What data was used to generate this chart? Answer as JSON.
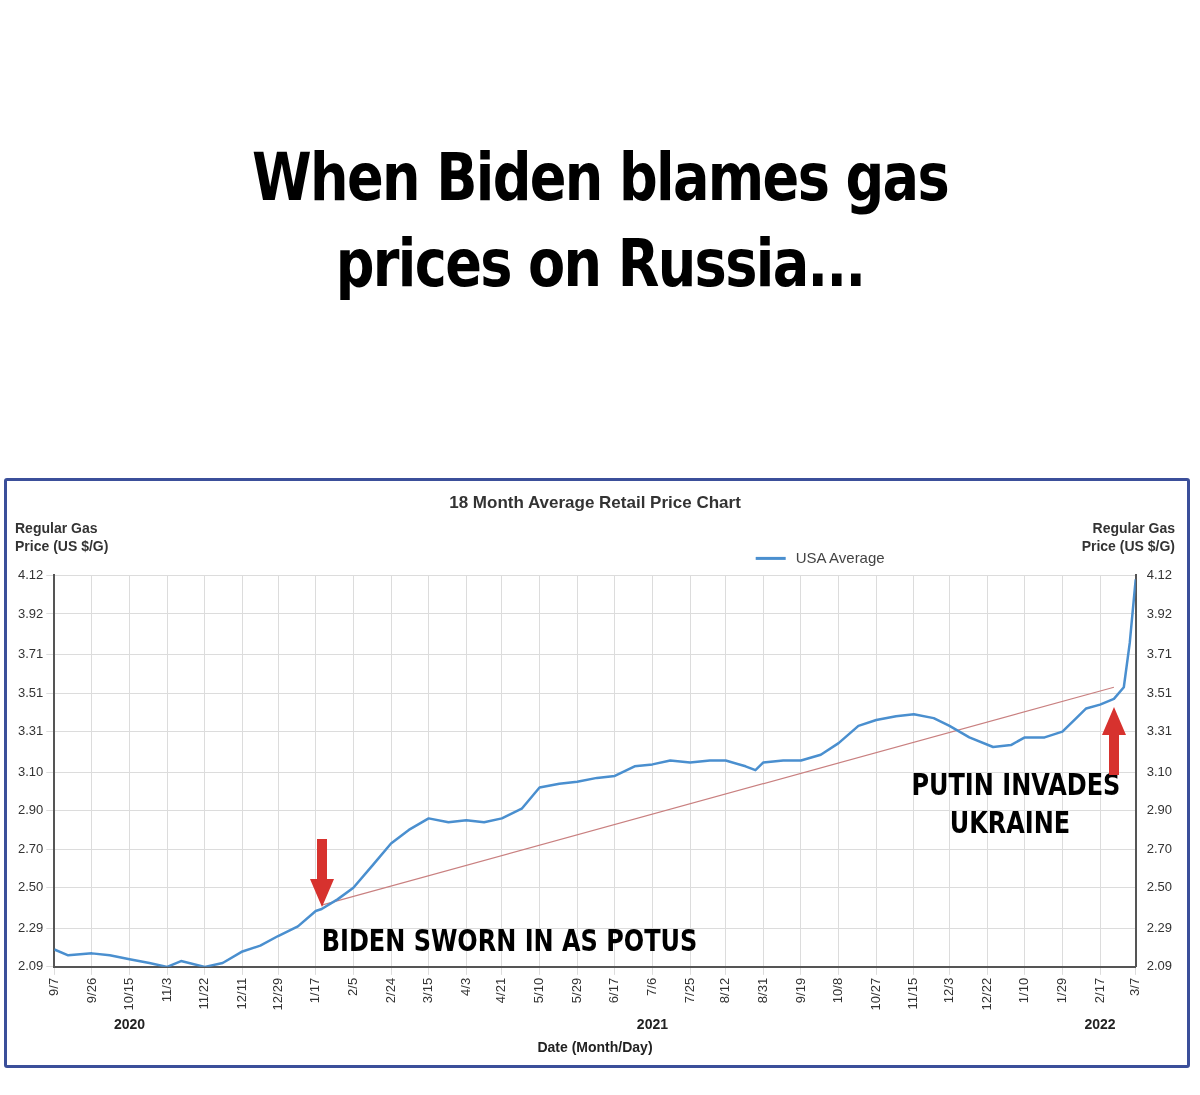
{
  "chart_data": {
    "type": "line",
    "title": "When Biden blames gas prices on Russia...",
    "subtitle": "18 Month Average Retail Price Chart",
    "xlabel": "Date (Month/Day)",
    "ylabel": "Regular Gas Price (US $/G)",
    "y2label": "Regular Gas Price (US $/G)",
    "xlim": [
      "2020-09-07",
      "2022-03-07"
    ],
    "xticks": [
      {
        "value": "2020-09-07",
        "label": "9/7"
      },
      {
        "value": "2020-09-26",
        "label": "9/26"
      },
      {
        "value": "2020-10-15",
        "label": "10/15"
      },
      {
        "value": "2020-11-03",
        "label": "11/3"
      },
      {
        "value": "2020-11-22",
        "label": "11/22"
      },
      {
        "value": "2020-12-11",
        "label": "12/11"
      },
      {
        "value": "2020-12-29",
        "label": "12/29"
      },
      {
        "value": "2021-01-17",
        "label": "1/17"
      },
      {
        "value": "2021-02-05",
        "label": "2/5"
      },
      {
        "value": "2021-02-24",
        "label": "2/24"
      },
      {
        "value": "2021-03-15",
        "label": "3/15"
      },
      {
        "value": "2021-04-03",
        "label": "4/3"
      },
      {
        "value": "2021-04-21",
        "label": "4/21"
      },
      {
        "value": "2021-05-10",
        "label": "5/10"
      },
      {
        "value": "2021-05-29",
        "label": "5/29"
      },
      {
        "value": "2021-06-17",
        "label": "6/17"
      },
      {
        "value": "2021-07-06",
        "label": "7/6"
      },
      {
        "value": "2021-07-25",
        "label": "7/25"
      },
      {
        "value": "2021-08-12",
        "label": "8/12"
      },
      {
        "value": "2021-08-31",
        "label": "8/31"
      },
      {
        "value": "2021-09-19",
        "label": "9/19"
      },
      {
        "value": "2021-10-08",
        "label": "10/8"
      },
      {
        "value": "2021-10-27",
        "label": "10/27"
      },
      {
        "value": "2021-11-15",
        "label": "11/15"
      },
      {
        "value": "2021-12-03",
        "label": "12/3"
      },
      {
        "value": "2021-12-22",
        "label": "12/22"
      },
      {
        "value": "2022-01-10",
        "label": "1/10"
      },
      {
        "value": "2022-01-29",
        "label": "1/29"
      },
      {
        "value": "2022-02-17",
        "label": "2/17"
      },
      {
        "value": "2022-03-07",
        "label": "3/7"
      }
    ],
    "x2lim": [
      "2020-09-07",
      "2022-03-07"
    ],
    "x2ticks": [
      {
        "value": "2020-10-15",
        "label": "2020"
      },
      {
        "value": "2021-07-06",
        "label": "2021"
      },
      {
        "value": "2022-02-17",
        "label": "2022"
      }
    ],
    "ylim": [
      2.09,
      4.12
    ],
    "yticks": [
      2.09,
      2.29,
      {
        "value": 2.5,
        "label": "2.50"
      },
      {
        "value": 2.7,
        "label": "2.70"
      },
      {
        "value": 2.9,
        "label": "2.90"
      },
      {
        "value": 3.1,
        "label": "3.10"
      },
      3.31,
      3.51,
      3.71,
      3.92,
      4.12
    ],
    "y2lim": [
      2.09,
      4.12
    ],
    "y2ticks": [
      2.09,
      2.29,
      {
        "value": 2.5,
        "label": "2.50"
      },
      {
        "value": 2.7,
        "label": "2.70"
      },
      {
        "value": 2.9,
        "label": "2.90"
      },
      {
        "value": 3.1,
        "label": "3.10"
      },
      3.31,
      3.51,
      3.71,
      3.92,
      4.12
    ],
    "grid": true,
    "legend": "top right",
    "marker": "none",
    "line_style": "solid",
    "series": [
      {
        "name": "USA Average",
        "color": "#4a8fcf",
        "x": [
          "2020-09-07",
          "2020-09-14",
          "2020-09-26",
          "2020-10-05",
          "2020-10-15",
          "2020-10-25",
          "2020-11-03",
          "2020-11-10",
          "2020-11-22",
          "2020-12-01",
          "2020-12-11",
          "2020-12-20",
          "2020-12-29",
          "2021-01-08",
          "2021-01-17",
          "2021-01-20",
          "2021-01-28",
          "2021-02-05",
          "2021-02-15",
          "2021-02-24",
          "2021-03-05",
          "2021-03-15",
          "2021-03-25",
          "2021-04-03",
          "2021-04-12",
          "2021-04-21",
          "2021-05-01",
          "2021-05-10",
          "2021-05-20",
          "2021-05-29",
          "2021-06-08",
          "2021-06-17",
          "2021-06-27",
          "2021-07-06",
          "2021-07-15",
          "2021-07-25",
          "2021-08-04",
          "2021-08-12",
          "2021-08-22",
          "2021-08-27",
          "2021-08-31",
          "2021-09-10",
          "2021-09-19",
          "2021-09-29",
          "2021-10-08",
          "2021-10-18",
          "2021-10-27",
          "2021-11-06",
          "2021-11-15",
          "2021-11-25",
          "2021-12-03",
          "2021-12-13",
          "2021-12-25",
          "2022-01-03",
          "2022-01-10",
          "2022-01-20",
          "2022-01-29",
          "2022-02-05",
          "2022-02-10",
          "2022-02-17",
          "2022-02-24",
          "2022-03-01",
          "2022-03-04",
          "2022-03-06",
          "2022-03-07"
        ],
        "values": [
          2.18,
          2.15,
          2.16,
          2.15,
          2.13,
          2.11,
          2.09,
          2.12,
          2.09,
          2.11,
          2.17,
          2.2,
          2.25,
          2.3,
          2.38,
          2.39,
          2.44,
          2.5,
          2.62,
          2.73,
          2.8,
          2.86,
          2.84,
          2.85,
          2.84,
          2.86,
          2.91,
          3.02,
          3.04,
          3.05,
          3.07,
          3.08,
          3.13,
          3.14,
          3.16,
          3.15,
          3.16,
          3.16,
          3.13,
          3.11,
          3.15,
          3.16,
          3.16,
          3.19,
          3.25,
          3.34,
          3.37,
          3.39,
          3.4,
          3.38,
          3.34,
          3.28,
          3.23,
          3.24,
          3.28,
          3.28,
          3.31,
          3.38,
          3.43,
          3.45,
          3.48,
          3.54,
          3.77,
          3.99,
          4.1
        ]
      },
      {
        "type": "line",
        "color": "#c98080",
        "x": [
          "2021-01-20",
          "2022-02-24"
        ],
        "values": [
          2.41,
          3.54
        ]
      }
    ],
    "annotations": [
      {
        "text": "BIDEN SWORN IN AS POTUS",
        "x": "2021-01-20",
        "y": 2.39
      },
      {
        "text": "PUTIN INVADES UKRAINE",
        "x": "2022-02-24",
        "y": 3.5
      }
    ]
  }
}
